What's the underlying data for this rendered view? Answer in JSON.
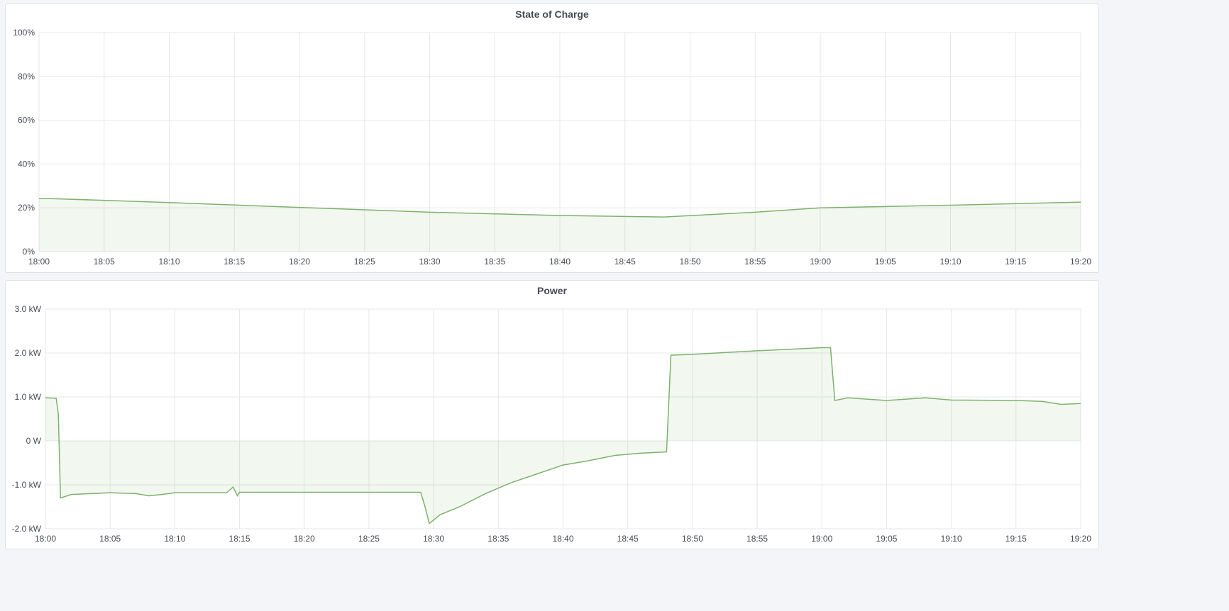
{
  "chart_data": [
    {
      "type": "area",
      "title": "State of Charge",
      "ylim": [
        0,
        100
      ],
      "yticks": [
        "0%",
        "20%",
        "40%",
        "60%",
        "80%",
        "100%"
      ],
      "ytick_values": [
        0,
        20,
        40,
        60,
        80,
        100
      ],
      "xticks": [
        "18:00",
        "18:05",
        "18:10",
        "18:15",
        "18:20",
        "18:25",
        "18:30",
        "18:35",
        "18:40",
        "18:45",
        "18:50",
        "18:55",
        "19:00",
        "19:05",
        "19:10",
        "19:15",
        "19:20"
      ],
      "xlim": [
        "18:00",
        "19:20"
      ],
      "grid": true,
      "color": "#7eb26d",
      "x": [
        "18:00",
        "18:01",
        "18:10",
        "18:20",
        "18:30",
        "18:40",
        "18:48",
        "18:55",
        "19:00",
        "19:10",
        "19:20"
      ],
      "values": [
        24.2,
        24.2,
        22.4,
        20.2,
        18.0,
        16.5,
        15.8,
        18.0,
        20.0,
        21.2,
        22.6
      ]
    },
    {
      "type": "area",
      "title": "Power",
      "ylim": [
        -2,
        3
      ],
      "yticks": [
        "-2.0 kW",
        "-1.0 kW",
        "0 W",
        "1.0 kW",
        "2.0 kW",
        "3.0 kW"
      ],
      "ytick_values": [
        -2,
        -1,
        0,
        1,
        2,
        3
      ],
      "xticks": [
        "18:00",
        "18:05",
        "18:10",
        "18:15",
        "18:20",
        "18:25",
        "18:30",
        "18:35",
        "18:40",
        "18:45",
        "18:50",
        "18:55",
        "19:00",
        "19:05",
        "19:10",
        "19:15",
        "19:20"
      ],
      "xlim": [
        "18:00",
        "19:20"
      ],
      "grid": true,
      "color": "#7eb26d",
      "unit": "kW",
      "x": [
        "18:00:00",
        "18:00:50",
        "18:01:00",
        "18:01:10",
        "18:02:00",
        "18:05:00",
        "18:07:00",
        "18:08:00",
        "18:09:00",
        "18:10:00",
        "18:14:00",
        "18:14:30",
        "18:14:50",
        "18:15:00",
        "18:20:00",
        "18:25:00",
        "18:29:00",
        "18:29:20",
        "18:29:40",
        "18:30:30",
        "18:32:00",
        "18:34:00",
        "18:36:00",
        "18:38:00",
        "18:40:00",
        "18:42:00",
        "18:44:00",
        "18:46:00",
        "18:48:00",
        "18:48:20",
        "18:50:00",
        "18:55:00",
        "19:00:00",
        "19:00:40",
        "19:01:00",
        "19:02:00",
        "19:05:00",
        "19:08:00",
        "19:10:00",
        "19:15:00",
        "19:17:00",
        "19:18:30",
        "19:20:00"
      ],
      "values": [
        0.98,
        0.97,
        0.6,
        -1.3,
        -1.22,
        -1.18,
        -1.2,
        -1.25,
        -1.22,
        -1.18,
        -1.18,
        -1.05,
        -1.25,
        -1.17,
        -1.17,
        -1.17,
        -1.17,
        -1.5,
        -1.88,
        -1.68,
        -1.5,
        -1.2,
        -0.95,
        -0.75,
        -0.55,
        -0.45,
        -0.33,
        -0.28,
        -0.25,
        1.95,
        1.97,
        2.05,
        2.12,
        2.12,
        0.92,
        0.98,
        0.92,
        0.98,
        0.93,
        0.92,
        0.9,
        0.83,
        0.85
      ]
    }
  ]
}
